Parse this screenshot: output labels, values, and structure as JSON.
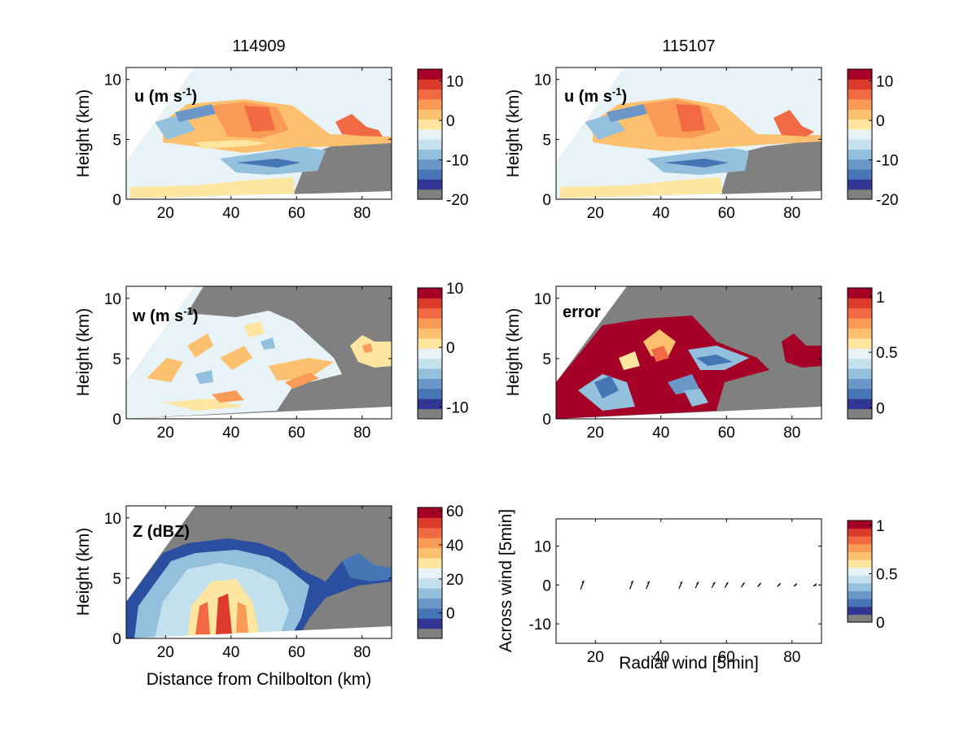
{
  "titles": {
    "left": "114909",
    "right": "115107"
  },
  "labels": {
    "height": "Height (km)",
    "distance": "Distance from Chilbolton (km)",
    "across": "Across wind [5min]",
    "radial": "Radial wind [5min]"
  },
  "panel_labels": {
    "u_left": "u (m s-1)",
    "u_right": "u (m s-1)",
    "w_left": "w (m s-1)",
    "error_right": "error",
    "z_left": "Z (dBZ)"
  },
  "colormap": [
    "#808080",
    "#313695",
    "#4575b4",
    "#6b96c8",
    "#92c0dd",
    "#c3e0ed",
    "#e8f3f7",
    "#fee6a0",
    "#fdc06e",
    "#fa9a57",
    "#f26a43",
    "#dc3b2c",
    "#a50026"
  ],
  "chart_data": [
    {
      "id": "u_left",
      "type": "heatmap",
      "title": "114909",
      "label": "u (m s-1)",
      "xlabel": "",
      "ylabel": "Height (km)",
      "xlim": [
        8,
        89
      ],
      "ylim": [
        0,
        11
      ],
      "xticks": [
        20,
        40,
        60,
        80
      ],
      "yticks": [
        0,
        5,
        10
      ],
      "colorbar": {
        "ticks": [
          10,
          0,
          -10,
          -20
        ],
        "range": [
          -20,
          13
        ]
      }
    },
    {
      "id": "u_right",
      "type": "heatmap",
      "title": "115107",
      "label": "u (m s-1)",
      "xlabel": "",
      "ylabel": "Height (km)",
      "xlim": [
        8,
        89
      ],
      "ylim": [
        0,
        11
      ],
      "xticks": [
        20,
        40,
        60,
        80
      ],
      "yticks": [
        0,
        5,
        10
      ],
      "colorbar": {
        "ticks": [
          10,
          0,
          -10,
          -20
        ],
        "range": [
          -20,
          13
        ]
      }
    },
    {
      "id": "w_left",
      "type": "heatmap",
      "label": "w (m s-1)",
      "xlabel": "",
      "ylabel": "Height (km)",
      "xlim": [
        8,
        89
      ],
      "ylim": [
        0,
        11
      ],
      "xticks": [
        20,
        40,
        60,
        80
      ],
      "yticks": [
        0,
        5,
        10
      ],
      "colorbar": {
        "ticks": [
          10,
          0,
          -10
        ],
        "range": [
          -12,
          10
        ]
      }
    },
    {
      "id": "error_right",
      "type": "heatmap",
      "label": "error",
      "xlabel": "",
      "ylabel": "Height (km)",
      "xlim": [
        8,
        89
      ],
      "ylim": [
        0,
        11
      ],
      "xticks": [
        20,
        40,
        60,
        80
      ],
      "yticks": [
        0,
        5,
        10
      ],
      "colorbar": {
        "ticks": [
          1,
          0.5,
          0
        ],
        "range": [
          -0.1,
          1.08
        ]
      }
    },
    {
      "id": "z_left",
      "type": "heatmap",
      "label": "Z (dBZ)",
      "xlabel": "Distance from Chilbolton (km)",
      "ylabel": "Height (km)",
      "xlim": [
        8,
        89
      ],
      "ylim": [
        0,
        11
      ],
      "xticks": [
        20,
        40,
        60,
        80
      ],
      "yticks": [
        0,
        5,
        10
      ],
      "colorbar": {
        "ticks": [
          60,
          40,
          20,
          0
        ],
        "range": [
          -15,
          62
        ]
      }
    },
    {
      "id": "wind",
      "type": "scatter",
      "xlabel": "Radial wind [5min]",
      "ylabel": "Across wind [5min]",
      "xlim": [
        8,
        89
      ],
      "ylim": [
        -15,
        17
      ],
      "xticks": [
        20,
        40,
        60,
        80
      ],
      "yticks": [
        -10,
        0,
        10
      ],
      "x": [
        16,
        31,
        36,
        46,
        51,
        56,
        60,
        65,
        70,
        76,
        81,
        87
      ],
      "y": [
        0,
        0,
        0,
        0,
        0,
        0,
        0,
        0,
        0,
        0,
        0,
        0
      ],
      "colorbar": {
        "ticks": [
          1,
          0.5,
          0
        ],
        "range": [
          0,
          1.05
        ]
      }
    }
  ]
}
